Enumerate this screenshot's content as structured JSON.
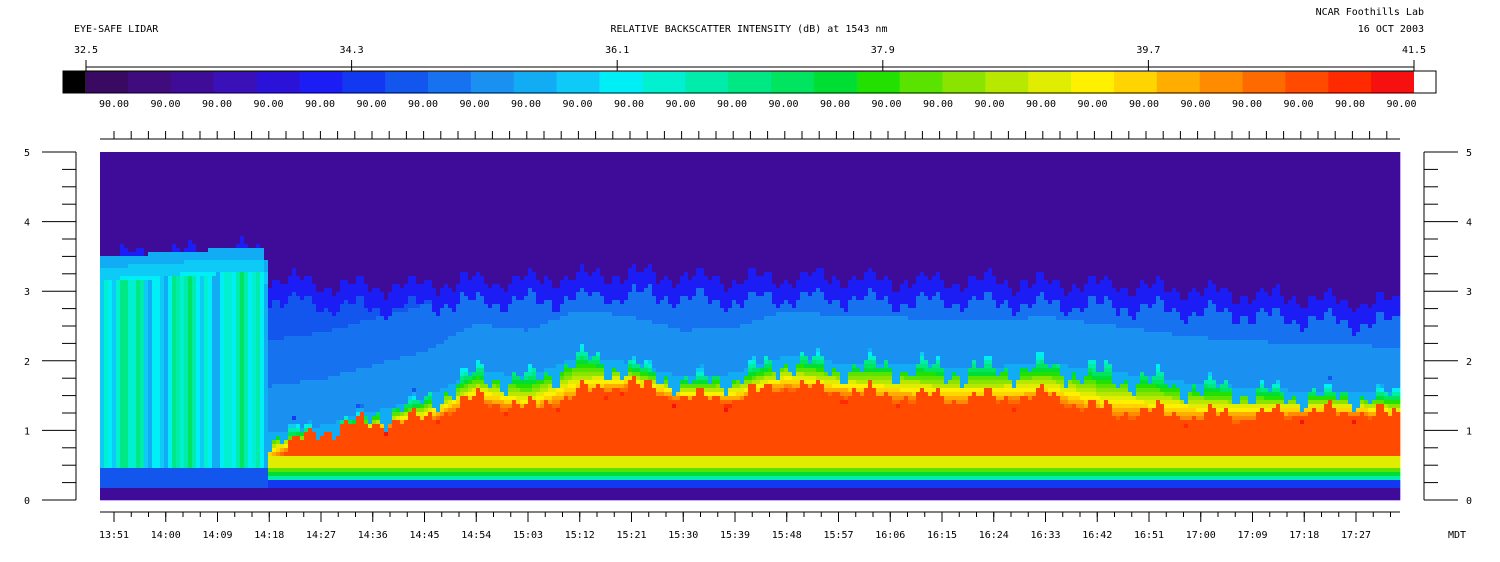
{
  "header": {
    "instrument": "EYE-SAFE LIDAR",
    "title": "RELATIVE BACKSCATTER INTENSITY (dB) at 1543 nm",
    "site": "NCAR Foothills Lab",
    "date": "16 OCT 2003"
  },
  "colorbar": {
    "ticks": [
      "32.5",
      "34.3",
      "36.1",
      "37.9",
      "39.7",
      "41.5"
    ],
    "under_label": "90.00",
    "under_label_count": 26,
    "range": [
      32.5,
      41.5
    ],
    "colors": [
      "#000000",
      "#3a0a63",
      "#400b7c",
      "#3f0c99",
      "#3a10b8",
      "#2a12d8",
      "#1c1cf4",
      "#1238f2",
      "#1256ee",
      "#1672ee",
      "#1a90f0",
      "#12acf4",
      "#0ecaf6",
      "#00eef6",
      "#00f0d0",
      "#00ecaa",
      "#00e884",
      "#00e460",
      "#00de34",
      "#22e000",
      "#5ae200",
      "#8ae400",
      "#b8e800",
      "#e0ec00",
      "#fff000",
      "#ffd400",
      "#ffae00",
      "#ff8c00",
      "#ff6a00",
      "#ff4a00",
      "#ff2a00",
      "#f71010",
      "#ffffff"
    ]
  },
  "time_axis": {
    "labels": [
      "13:51",
      "14:00",
      "14:09",
      "14:18",
      "14:27",
      "14:36",
      "14:45",
      "14:54",
      "15:03",
      "15:12",
      "15:21",
      "15:30",
      "15:39",
      "15:48",
      "15:57",
      "16:06",
      "16:15",
      "16:24",
      "16:33",
      "16:42",
      "16:51",
      "17:00",
      "17:09",
      "17:18",
      "17:27"
    ],
    "unit": "MDT",
    "minutes_per_label": 9
  },
  "height_axis": {
    "labels": [
      "0",
      "1",
      "2",
      "3",
      "4",
      "5"
    ],
    "range": [
      0,
      5
    ]
  },
  "chart_data": {
    "type": "heatmap",
    "title": "RELATIVE BACKSCATTER INTENSITY (dB) at 1543 nm",
    "xlabel": "MDT",
    "ylabel": "",
    "x_range": [
      "13:51",
      "17:34"
    ],
    "ylim": [
      0,
      5
    ],
    "colorscale_range_db": [
      32.5,
      41.5
    ],
    "x_ticks": [
      "13:51",
      "14:00",
      "14:09",
      "14:18",
      "14:27",
      "14:36",
      "14:45",
      "14:54",
      "15:03",
      "15:12",
      "15:21",
      "15:30",
      "15:39",
      "15:48",
      "15:57",
      "16:06",
      "16:15",
      "16:24",
      "16:33",
      "16:42",
      "16:51",
      "17:00",
      "17:09",
      "17:18",
      "17:27"
    ],
    "y_ticks": [
      0,
      1,
      2,
      3,
      4,
      5
    ],
    "profiles": {
      "time": [
        "13:51",
        "14:00",
        "14:09",
        "14:17",
        "14:18",
        "14:27",
        "14:36",
        "14:45",
        "14:54",
        "15:03",
        "15:12",
        "15:21",
        "15:30",
        "15:39",
        "15:48",
        "15:57",
        "16:06",
        "16:15",
        "16:24",
        "16:33",
        "16:42",
        "16:51",
        "17:00",
        "17:09",
        "17:18",
        "17:27",
        "17:34"
      ],
      "aerosol_top": [
        1.4,
        1.0,
        0.95,
        0.95,
        0.9,
        1.0,
        1.2,
        1.4,
        1.8,
        1.7,
        2.0,
        1.9,
        1.7,
        1.75,
        2.0,
        1.9,
        1.9,
        1.85,
        1.85,
        1.9,
        1.8,
        1.7,
        1.6,
        1.55,
        1.5,
        1.5,
        1.45
      ],
      "mixed_layer_top": [
        0.45,
        0.45,
        0.45,
        0.45,
        0.6,
        1.0,
        1.1,
        1.15,
        1.45,
        1.3,
        1.55,
        1.65,
        1.45,
        1.45,
        1.65,
        1.55,
        1.5,
        1.45,
        1.45,
        1.5,
        1.3,
        1.25,
        1.2,
        1.2,
        1.25,
        1.25,
        1.2
      ],
      "layer_top_blue": [
        3.5,
        3.55,
        3.6,
        3.6,
        3.2,
        3.1,
        3.05,
        3.1,
        3.15,
        3.15,
        3.2,
        3.25,
        3.2,
        3.15,
        3.2,
        3.2,
        3.15,
        3.15,
        3.15,
        3.1,
        3.1,
        3.05,
        3.0,
        2.95,
        2.9,
        2.85,
        2.85
      ]
    }
  }
}
